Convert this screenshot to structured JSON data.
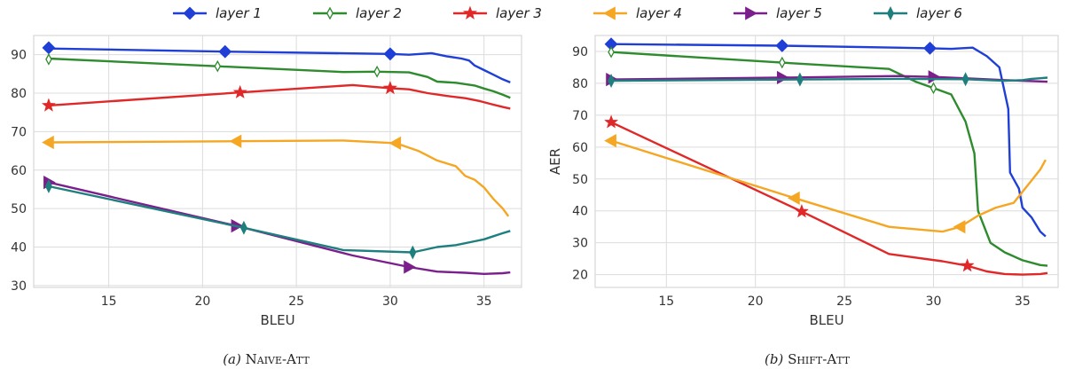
{
  "legend": [
    {
      "label": "layer 1",
      "color": "#1f3fd6",
      "marker": "diamond"
    },
    {
      "label": "layer 2",
      "color": "#2e8b2e",
      "marker": "thin-diamond"
    },
    {
      "label": "layer 3",
      "color": "#e02828",
      "marker": "star"
    },
    {
      "label": "layer 4",
      "color": "#f5a623",
      "marker": "triangle-left"
    },
    {
      "label": "layer 5",
      "color": "#7b1f8c",
      "marker": "triangle-right"
    },
    {
      "label": "layer 6",
      "color": "#1f7f7f",
      "marker": "plus-diamond"
    }
  ],
  "captions": {
    "a_prefix": "(a)",
    "a_name": "Naive-Att",
    "b_prefix": "(b)",
    "b_name": "Shift-Att"
  },
  "chart_data": [
    {
      "type": "line",
      "xlabel": "BLEU",
      "ylabel": "",
      "xlim": [
        11,
        37
      ],
      "ylim": [
        29.5,
        95
      ],
      "xticks": [
        15,
        20,
        25,
        30,
        35
      ],
      "yticks": [
        30,
        40,
        50,
        60,
        70,
        80,
        90
      ],
      "grid": true,
      "series": [
        {
          "name": "layer 1",
          "markers": [
            [
              11.8,
              91.8
            ],
            [
              21.2,
              90.8
            ],
            [
              30.0,
              90.2
            ]
          ],
          "points": [
            [
              11.8,
              91.6
            ],
            [
              21.2,
              90.8
            ],
            [
              30.0,
              90.2
            ],
            [
              31.0,
              90.0
            ],
            [
              32.2,
              90.4
            ],
            [
              33.0,
              89.6
            ],
            [
              33.8,
              89.0
            ],
            [
              34.2,
              88.5
            ],
            [
              34.5,
              87.2
            ],
            [
              35.0,
              86.0
            ],
            [
              35.5,
              84.8
            ],
            [
              36.0,
              83.6
            ],
            [
              36.4,
              82.8
            ]
          ]
        },
        {
          "name": "layer 2",
          "markers": [
            [
              11.8,
              88.8
            ],
            [
              20.8,
              87.0
            ],
            [
              29.3,
              85.6
            ]
          ],
          "points": [
            [
              11.8,
              89.0
            ],
            [
              20.8,
              87.0
            ],
            [
              27.5,
              85.5
            ],
            [
              29.3,
              85.6
            ],
            [
              31.0,
              85.4
            ],
            [
              32.0,
              84.2
            ],
            [
              32.5,
              83.0
            ],
            [
              33.5,
              82.7
            ],
            [
              34.5,
              82.0
            ],
            [
              35.0,
              81.2
            ],
            [
              35.5,
              80.5
            ],
            [
              36.0,
              79.6
            ],
            [
              36.4,
              78.8
            ]
          ]
        },
        {
          "name": "layer 3",
          "markers": [
            [
              11.8,
              76.8
            ],
            [
              22.0,
              80.2
            ],
            [
              30.0,
              81.3
            ]
          ],
          "points": [
            [
              11.8,
              76.8
            ],
            [
              22.0,
              80.2
            ],
            [
              28.0,
              82.1
            ],
            [
              30.0,
              81.3
            ],
            [
              31.0,
              81.0
            ],
            [
              32.0,
              80.0
            ],
            [
              33.0,
              79.3
            ],
            [
              34.0,
              78.7
            ],
            [
              34.8,
              77.9
            ],
            [
              35.5,
              77.0
            ],
            [
              36.0,
              76.4
            ],
            [
              36.4,
              76.0
            ]
          ]
        },
        {
          "name": "layer 4",
          "markers": [
            [
              11.8,
              67.2
            ],
            [
              21.8,
              67.5
            ],
            [
              30.3,
              67.0
            ]
          ],
          "points": [
            [
              11.8,
              67.2
            ],
            [
              21.8,
              67.5
            ],
            [
              27.5,
              67.7
            ],
            [
              30.3,
              67.0
            ],
            [
              31.5,
              65.0
            ],
            [
              32.5,
              62.5
            ],
            [
              33.5,
              61.0
            ],
            [
              34.0,
              58.5
            ],
            [
              34.5,
              57.5
            ],
            [
              35.0,
              55.5
            ],
            [
              35.5,
              52.5
            ],
            [
              36.0,
              50.0
            ],
            [
              36.3,
              48.0
            ]
          ]
        },
        {
          "name": "layer 5",
          "markers": [
            [
              11.8,
              56.8
            ],
            [
              21.8,
              45.5
            ],
            [
              31.0,
              34.8
            ]
          ],
          "points": [
            [
              11.8,
              56.8
            ],
            [
              21.8,
              45.5
            ],
            [
              28.0,
              37.8
            ],
            [
              31.0,
              34.8
            ],
            [
              32.5,
              33.6
            ],
            [
              34.0,
              33.3
            ],
            [
              35.0,
              33.0
            ],
            [
              36.0,
              33.2
            ],
            [
              36.4,
              33.4
            ]
          ]
        },
        {
          "name": "layer 6",
          "markers": [
            [
              11.8,
              55.8
            ],
            [
              22.2,
              45.0
            ],
            [
              31.2,
              38.6
            ]
          ],
          "points": [
            [
              11.8,
              55.8
            ],
            [
              22.2,
              45.0
            ],
            [
              27.5,
              39.2
            ],
            [
              31.2,
              38.6
            ],
            [
              32.5,
              40.0
            ],
            [
              33.5,
              40.5
            ],
            [
              34.5,
              41.5
            ],
            [
              35.0,
              42.0
            ],
            [
              35.5,
              42.8
            ],
            [
              36.0,
              43.6
            ],
            [
              36.4,
              44.2
            ]
          ]
        }
      ]
    },
    {
      "type": "line",
      "xlabel": "BLEU",
      "ylabel": "AER",
      "xlim": [
        11,
        37
      ],
      "ylim": [
        16,
        95
      ],
      "xticks": [
        15,
        20,
        25,
        30,
        35
      ],
      "yticks": [
        20,
        30,
        40,
        50,
        60,
        70,
        80,
        90
      ],
      "grid": true,
      "series": [
        {
          "name": "layer 1",
          "markers": [
            [
              11.9,
              92.3
            ],
            [
              21.5,
              91.8
            ],
            [
              29.8,
              91.0
            ]
          ],
          "points": [
            [
              11.9,
              92.3
            ],
            [
              21.5,
              91.8
            ],
            [
              29.8,
              91.0
            ],
            [
              31.0,
              90.8
            ],
            [
              32.2,
              91.2
            ],
            [
              33.0,
              88.5
            ],
            [
              33.7,
              85.0
            ],
            [
              34.2,
              72.0
            ],
            [
              34.3,
              52.0
            ],
            [
              34.8,
              47.0
            ],
            [
              35.0,
              41.0
            ],
            [
              35.5,
              38.0
            ],
            [
              36.0,
              33.5
            ],
            [
              36.3,
              32.0
            ]
          ]
        },
        {
          "name": "layer 2",
          "markers": [
            [
              11.9,
              89.8
            ],
            [
              21.5,
              86.5
            ],
            [
              30.0,
              78.5
            ]
          ],
          "points": [
            [
              11.9,
              89.8
            ],
            [
              21.5,
              86.5
            ],
            [
              27.5,
              84.5
            ],
            [
              29.0,
              80.5
            ],
            [
              30.0,
              78.5
            ],
            [
              31.0,
              76.5
            ],
            [
              31.8,
              68.0
            ],
            [
              32.3,
              58.0
            ],
            [
              32.5,
              40.0
            ],
            [
              33.2,
              30.0
            ],
            [
              34.0,
              27.0
            ],
            [
              35.0,
              24.5
            ],
            [
              36.0,
              23.0
            ],
            [
              36.4,
              22.8
            ]
          ]
        },
        {
          "name": "layer 3",
          "markers": [
            [
              11.9,
              67.8
            ],
            [
              22.6,
              39.8
            ],
            [
              31.9,
              22.8
            ]
          ],
          "points": [
            [
              11.9,
              67.8
            ],
            [
              22.6,
              39.8
            ],
            [
              27.5,
              26.5
            ],
            [
              30.5,
              24.2
            ],
            [
              31.9,
              22.8
            ],
            [
              33.0,
              21.0
            ],
            [
              34.0,
              20.2
            ],
            [
              35.0,
              20.0
            ],
            [
              36.0,
              20.2
            ],
            [
              36.4,
              20.5
            ]
          ]
        },
        {
          "name": "layer 4",
          "markers": [
            [
              11.9,
              62.0
            ],
            [
              22.2,
              44.0
            ],
            [
              31.5,
              35.0
            ]
          ],
          "points": [
            [
              11.9,
              62.0
            ],
            [
              22.2,
              44.0
            ],
            [
              27.5,
              35.0
            ],
            [
              30.5,
              33.5
            ],
            [
              31.5,
              35.0
            ],
            [
              32.5,
              38.5
            ],
            [
              33.5,
              41.0
            ],
            [
              34.5,
              42.5
            ],
            [
              35.0,
              46.0
            ],
            [
              35.5,
              49.5
            ],
            [
              36.0,
              53.0
            ],
            [
              36.3,
              56.0
            ]
          ]
        },
        {
          "name": "layer 5",
          "markers": [
            [
              11.9,
              81.2
            ],
            [
              21.5,
              81.8
            ],
            [
              30.0,
              82.0
            ]
          ],
          "points": [
            [
              11.9,
              81.2
            ],
            [
              21.5,
              81.8
            ],
            [
              28.0,
              82.3
            ],
            [
              30.0,
              82.0
            ],
            [
              32.0,
              81.5
            ],
            [
              34.0,
              81.0
            ],
            [
              35.0,
              80.8
            ],
            [
              36.0,
              80.6
            ],
            [
              36.4,
              80.5
            ]
          ]
        },
        {
          "name": "layer 6",
          "markers": [
            [
              11.9,
              80.8
            ],
            [
              22.5,
              81.2
            ],
            [
              31.8,
              81.3
            ]
          ],
          "points": [
            [
              11.9,
              80.8
            ],
            [
              22.5,
              81.2
            ],
            [
              28.0,
              81.4
            ],
            [
              31.8,
              81.3
            ],
            [
              33.0,
              81.0
            ],
            [
              34.0,
              80.8
            ],
            [
              35.0,
              81.0
            ],
            [
              35.5,
              81.4
            ],
            [
              36.0,
              81.6
            ],
            [
              36.4,
              81.8
            ]
          ]
        }
      ]
    }
  ]
}
